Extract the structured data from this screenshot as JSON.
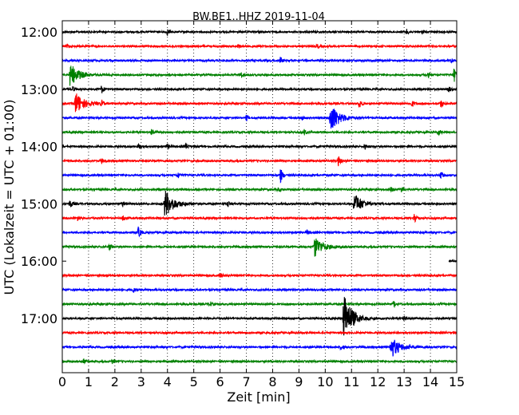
{
  "chart_data": {
    "type": "line",
    "title": "BW.BE1..HHZ 2019-11-04",
    "xlabel": "Zeit  [min]",
    "ylabel": "UTC (Lokalzeit = UTC + 01:00)",
    "xlim": [
      0,
      15
    ],
    "x_ticks": [
      "0",
      "1",
      "2",
      "3",
      "4",
      "5",
      "6",
      "7",
      "8",
      "9",
      "10",
      "11",
      "12",
      "13",
      "14",
      "15"
    ],
    "y_tick_labels": [
      "12:00",
      "13:00",
      "14:00",
      "15:00",
      "16:00",
      "17:00"
    ],
    "traces_per_hour": 4,
    "trace_colors": [
      "#000000",
      "#ff0000",
      "#0000ff",
      "#008000"
    ],
    "grid": "vertical dotted",
    "traces": [
      {
        "start": "12:00",
        "events": [
          {
            "t": 4.0,
            "amp": 0.35
          },
          {
            "t": 13.1,
            "amp": 0.3
          },
          {
            "t": 13.7,
            "amp": 0.25
          }
        ]
      },
      {
        "start": "12:15",
        "events": [
          {
            "t": 0.2,
            "amp": 0.25
          },
          {
            "t": 6.7,
            "amp": 0.2
          },
          {
            "t": 9.7,
            "amp": 0.25
          }
        ]
      },
      {
        "start": "12:30",
        "events": [
          {
            "t": 8.3,
            "amp": 0.4
          },
          {
            "t": 14.8,
            "amp": 0.25
          }
        ]
      },
      {
        "start": "12:45",
        "events": [
          {
            "t": 0.3,
            "amp": 1.4
          },
          {
            "t": 6.8,
            "amp": 0.35
          },
          {
            "t": 13.9,
            "amp": 0.3
          },
          {
            "t": 14.9,
            "amp": 0.8
          }
        ]
      },
      {
        "start": "13:00",
        "events": [
          {
            "t": 0.4,
            "amp": 0.3
          },
          {
            "t": 1.5,
            "amp": 0.5
          },
          {
            "t": 14.7,
            "amp": 0.35
          }
        ]
      },
      {
        "start": "13:15",
        "events": [
          {
            "t": 0.5,
            "amp": 1.3
          },
          {
            "t": 1.5,
            "amp": 0.3
          },
          {
            "t": 11.3,
            "amp": 0.6
          },
          {
            "t": 13.3,
            "amp": 0.4
          },
          {
            "t": 14.4,
            "amp": 0.5
          }
        ]
      },
      {
        "start": "13:30",
        "events": [
          {
            "t": 7.0,
            "amp": 0.3
          },
          {
            "t": 9.1,
            "amp": 0.3
          },
          {
            "t": 10.2,
            "amp": 1.8
          }
        ]
      },
      {
        "start": "13:45",
        "events": [
          {
            "t": 3.4,
            "amp": 0.5
          },
          {
            "t": 9.2,
            "amp": 0.3
          },
          {
            "t": 14.3,
            "amp": 0.4
          }
        ]
      },
      {
        "start": "14:00",
        "events": [
          {
            "t": 2.9,
            "amp": 0.35
          },
          {
            "t": 4.0,
            "amp": 0.25
          },
          {
            "t": 4.7,
            "amp": 0.35
          },
          {
            "t": 11.5,
            "amp": 0.35
          }
        ]
      },
      {
        "start": "14:15",
        "events": [
          {
            "t": 1.5,
            "amp": 0.3
          },
          {
            "t": 10.5,
            "amp": 0.55
          }
        ]
      },
      {
        "start": "14:30",
        "events": [
          {
            "t": 4.4,
            "amp": 0.4
          },
          {
            "t": 8.3,
            "amp": 0.9
          },
          {
            "t": 14.4,
            "amp": 0.4
          }
        ]
      },
      {
        "start": "14:45",
        "events": [
          {
            "t": 8.2,
            "amp": 0.25
          },
          {
            "t": 12.5,
            "amp": 0.3
          },
          {
            "t": 12.9,
            "amp": 0.35
          }
        ]
      },
      {
        "start": "15:00",
        "events": [
          {
            "t": 0.3,
            "amp": 0.5
          },
          {
            "t": 2.3,
            "amp": 0.3
          },
          {
            "t": 3.9,
            "amp": 1.7
          },
          {
            "t": 6.3,
            "amp": 0.4
          },
          {
            "t": 11.1,
            "amp": 1.2
          }
        ]
      },
      {
        "start": "15:15",
        "events": [
          {
            "t": 0.6,
            "amp": 0.35
          },
          {
            "t": 2.3,
            "amp": 0.3
          },
          {
            "t": 13.4,
            "amp": 0.7
          }
        ]
      },
      {
        "start": "15:30",
        "events": [
          {
            "t": 2.9,
            "amp": 0.7
          },
          {
            "t": 9.3,
            "amp": 0.3
          }
        ]
      },
      {
        "start": "15:45",
        "events": [
          {
            "t": 1.8,
            "amp": 0.4
          },
          {
            "t": 9.6,
            "amp": 1.2
          }
        ],
        "end": 15.0
      },
      {
        "start": "16:00",
        "events": [],
        "start_min": 14.7
      },
      {
        "start": "16:15",
        "events": [
          {
            "t": 6.0,
            "amp": 0.3
          }
        ]
      },
      {
        "start": "16:30",
        "events": [
          {
            "t": 2.7,
            "amp": 0.3
          }
        ]
      },
      {
        "start": "16:45",
        "events": [
          {
            "t": 5.6,
            "amp": 0.4
          },
          {
            "t": 12.6,
            "amp": 0.4
          }
        ]
      },
      {
        "start": "17:00",
        "events": [
          {
            "t": 10.7,
            "amp": 3.0
          },
          {
            "t": 13.0,
            "amp": 0.3
          }
        ]
      },
      {
        "start": "17:15",
        "events": []
      },
      {
        "start": "17:30",
        "events": [
          {
            "t": 10.6,
            "amp": 0.3
          },
          {
            "t": 12.5,
            "amp": 1.3
          }
        ]
      },
      {
        "start": "17:45",
        "events": [
          {
            "t": 0.8,
            "amp": 0.3
          },
          {
            "t": 1.9,
            "amp": 0.25
          }
        ]
      }
    ]
  }
}
